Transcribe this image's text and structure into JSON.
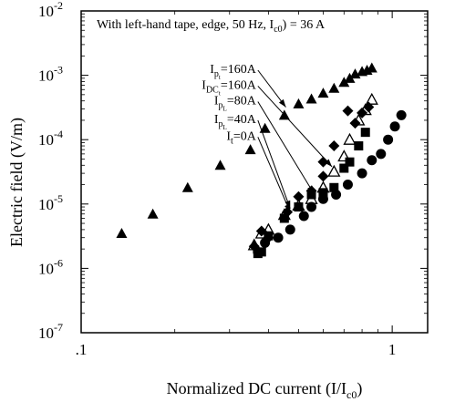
{
  "chart_data": {
    "type": "scatter",
    "x_scale": "log",
    "y_scale": "log",
    "xlim": [
      0.1,
      1.3
    ],
    "ylim": [
      1e-07,
      0.01
    ],
    "x_ticks": [
      {
        "value": 0.1,
        "label": ".1"
      },
      {
        "value": 1,
        "label": "1"
      }
    ],
    "y_ticks": [
      {
        "value": 1e-07,
        "base": "10",
        "exp": "-7"
      },
      {
        "value": 1e-06,
        "base": "10",
        "exp": "-6"
      },
      {
        "value": 1e-05,
        "base": "10",
        "exp": "-5"
      },
      {
        "value": 0.0001,
        "base": "10",
        "exp": "-4"
      },
      {
        "value": 0.001,
        "base": "10",
        "exp": "-3"
      },
      {
        "value": 0.01,
        "base": "10",
        "exp": "-2"
      }
    ],
    "xlabel": {
      "main": "Normalized DC current (I/I",
      "sub": "c0",
      "end": ")"
    },
    "ylabel": "Electric field (V/m)",
    "annotation": {
      "main": "With left-hand tape, edge, 50 Hz, I",
      "sub": "c0",
      "end": ") = 36 A"
    },
    "series": [
      {
        "label": {
          "main": "I",
          "sub": "p",
          "subsub": "t",
          "end": "=160A"
        },
        "marker": "filled-triangle",
        "points": [
          [
            0.135,
            3.5e-06
          ],
          [
            0.17,
            7e-06
          ],
          [
            0.22,
            1.8e-05
          ],
          [
            0.28,
            4e-05
          ],
          [
            0.35,
            7e-05
          ],
          [
            0.39,
            0.00015
          ],
          [
            0.45,
            0.00024
          ],
          [
            0.5,
            0.00036
          ],
          [
            0.55,
            0.00043
          ],
          [
            0.6,
            0.00053
          ],
          [
            0.65,
            0.00063
          ],
          [
            0.7,
            0.00078
          ],
          [
            0.73,
            0.0009
          ],
          [
            0.76,
            0.00105
          ],
          [
            0.8,
            0.00115
          ],
          [
            0.83,
            0.0012
          ],
          [
            0.86,
            0.0013
          ]
        ]
      },
      {
        "label": {
          "main": "I",
          "sub": "DC",
          "subsub": "t",
          "end": "=160A"
        },
        "marker": "open-triangle",
        "points": [
          [
            0.36,
            2.3e-06
          ],
          [
            0.38,
            3.5e-06
          ],
          [
            0.4,
            4e-06
          ],
          [
            0.45,
            6.8e-06
          ],
          [
            0.5,
            9.5e-06
          ],
          [
            0.55,
            1.2e-05
          ],
          [
            0.6,
            1.8e-05
          ],
          [
            0.65,
            3.2e-05
          ],
          [
            0.7,
            5.5e-05
          ],
          [
            0.73,
            0.0001
          ],
          [
            0.78,
            0.0002
          ],
          [
            0.82,
            0.00029
          ],
          [
            0.86,
            0.00042
          ]
        ]
      },
      {
        "label": {
          "main": "I",
          "sub": "p",
          "subsub": "L",
          "end": "=80A"
        },
        "marker": "filled-diamond",
        "points": [
          [
            0.36,
            2.2e-06
          ],
          [
            0.38,
            3.8e-06
          ],
          [
            0.4,
            3e-06
          ],
          [
            0.46,
            7.5e-06
          ],
          [
            0.5,
            1.3e-05
          ],
          [
            0.55,
            1.6e-05
          ],
          [
            0.6,
            2.7e-05
          ],
          [
            0.6,
            4.5e-05
          ],
          [
            0.65,
            8e-05
          ],
          [
            0.72,
            0.00028
          ],
          [
            0.76,
            0.00018
          ],
          [
            0.8,
            0.00026
          ],
          [
            0.84,
            0.00032
          ]
        ]
      },
      {
        "label": {
          "main": "I",
          "sub": "p",
          "subsub": "L",
          "end": "=40A"
        },
        "marker": "filled-square",
        "points": [
          [
            0.37,
            1.7e-06
          ],
          [
            0.38,
            1.8e-06
          ],
          [
            0.4,
            3.2e-06
          ],
          [
            0.45,
            6e-06
          ],
          [
            0.5,
            9e-06
          ],
          [
            0.55,
            1.4e-05
          ],
          [
            0.6,
            1.5e-05
          ],
          [
            0.65,
            1.8e-05
          ],
          [
            0.7,
            3.6e-05
          ],
          [
            0.73,
            4.5e-05
          ],
          [
            0.78,
            8e-05
          ],
          [
            0.82,
            0.00013
          ]
        ]
      },
      {
        "label": {
          "main": "I",
          "sub": "t",
          "subsub": "",
          "end": "=0A"
        },
        "marker": "filled-circle",
        "points": [
          [
            0.37,
            1.8e-06
          ],
          [
            0.39,
            2.5e-06
          ],
          [
            0.43,
            3e-06
          ],
          [
            0.47,
            4e-06
          ],
          [
            0.52,
            6.5e-06
          ],
          [
            0.55,
            9e-06
          ],
          [
            0.6,
            1.2e-05
          ],
          [
            0.66,
            1.4e-05
          ],
          [
            0.72,
            2e-05
          ],
          [
            0.8,
            3e-05
          ],
          [
            0.86,
            4.8e-05
          ],
          [
            0.92,
            6e-05
          ],
          [
            0.97,
            0.0001
          ],
          [
            1.02,
            0.00016
          ],
          [
            1.07,
            0.00024
          ]
        ]
      }
    ],
    "arrows": [
      {
        "from": [
          0.37,
          0.0012
        ],
        "to": [
          0.455,
          0.00032
        ]
      },
      {
        "from": [
          0.37,
          0.00068
        ],
        "to": [
          0.64,
          3.8e-05
        ]
      },
      {
        "from": [
          0.37,
          0.00039
        ],
        "to": [
          0.56,
          1.45e-05
        ]
      },
      {
        "from": [
          0.37,
          0.0002
        ],
        "to": [
          0.47,
          8.5e-06
        ]
      },
      {
        "from": [
          0.37,
          0.00011
        ],
        "to": [
          0.47,
          7.5e-06
        ]
      }
    ]
  }
}
